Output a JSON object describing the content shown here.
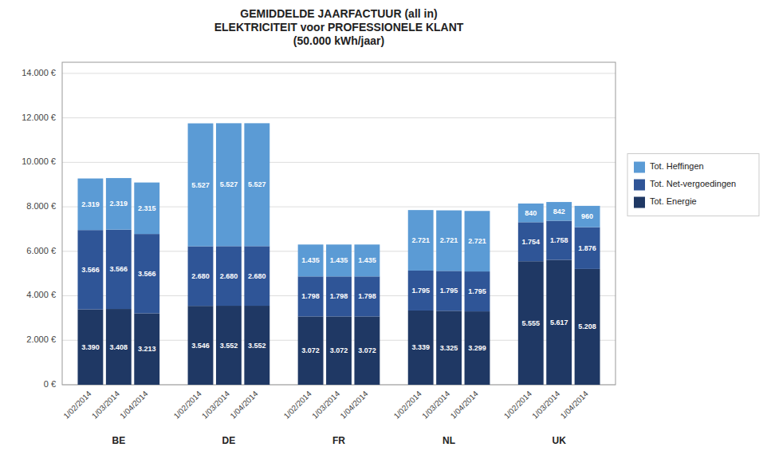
{
  "chart_data": {
    "type": "bar",
    "stacked": true,
    "title": "GEMIDDELDE JAARFACTUUR (all in)\nELEKTRICITEIT voor PROFESSIONELE KLANT\n(50.000 kWh/jaar)",
    "groups": [
      "BE",
      "DE",
      "FR",
      "NL",
      "UK"
    ],
    "categories": [
      "1/02/2014",
      "1/03/2014",
      "1/04/2014",
      "1/02/2014",
      "1/03/2014",
      "1/04/2014",
      "1/02/2014",
      "1/03/2014",
      "1/04/2014",
      "1/02/2014",
      "1/03/2014",
      "1/04/2014",
      "1/02/2014",
      "1/03/2014",
      "1/04/2014"
    ],
    "series": [
      {
        "name": "Tot. Energie",
        "color": "#1F3864",
        "values": [
          3390,
          3408,
          3213,
          3546,
          3552,
          3552,
          3072,
          3072,
          3072,
          3339,
          3325,
          3299,
          5555,
          5617,
          5208
        ],
        "value_labels": [
          "3.390",
          "3.408",
          "3.213",
          "3.546",
          "3.552",
          "3.552",
          "3.072",
          "3.072",
          "3.072",
          "3.339",
          "3.325",
          "3.299",
          "5.555",
          "5.617",
          "5.208"
        ]
      },
      {
        "name": "Tot. Net-vergoedingen",
        "color": "#2F5597",
        "values": [
          3566,
          3566,
          3566,
          2680,
          2680,
          2680,
          1798,
          1798,
          1798,
          1795,
          1795,
          1795,
          1754,
          1758,
          1876
        ],
        "value_labels": [
          "3.566",
          "3.566",
          "3.566",
          "2.680",
          "2.680",
          "2.680",
          "1.798",
          "1.798",
          "1.798",
          "1.795",
          "1.795",
          "1.795",
          "1.754",
          "1.758",
          "1.876"
        ]
      },
      {
        "name": "Tot. Heffingen",
        "color": "#5B9BD5",
        "values": [
          2319,
          2319,
          2315,
          5527,
          5527,
          5527,
          1435,
          1435,
          1435,
          2721,
          2721,
          2721,
          840,
          842,
          960
        ],
        "value_labels": [
          "2.319",
          "2.319",
          "2.315",
          "5.527",
          "5.527",
          "5.527",
          "1.435",
          "1.435",
          "1.435",
          "2.721",
          "2.721",
          "2.721",
          "840",
          "842",
          "960"
        ]
      }
    ],
    "ylim": [
      0,
      14500
    ],
    "yticks": [
      {
        "value": 0,
        "label": "0 €"
      },
      {
        "value": 2000,
        "label": "2.000 €"
      },
      {
        "value": 4000,
        "label": "4.000 €"
      },
      {
        "value": 6000,
        "label": "6.000 €"
      },
      {
        "value": 8000,
        "label": "8.000 €"
      },
      {
        "value": 10000,
        "label": "10.000 €"
      },
      {
        "value": 12000,
        "label": "12.000 €"
      },
      {
        "value": 14000,
        "label": "14.000 €"
      }
    ],
    "grid": true,
    "legend": "right",
    "data_labels": true
  }
}
